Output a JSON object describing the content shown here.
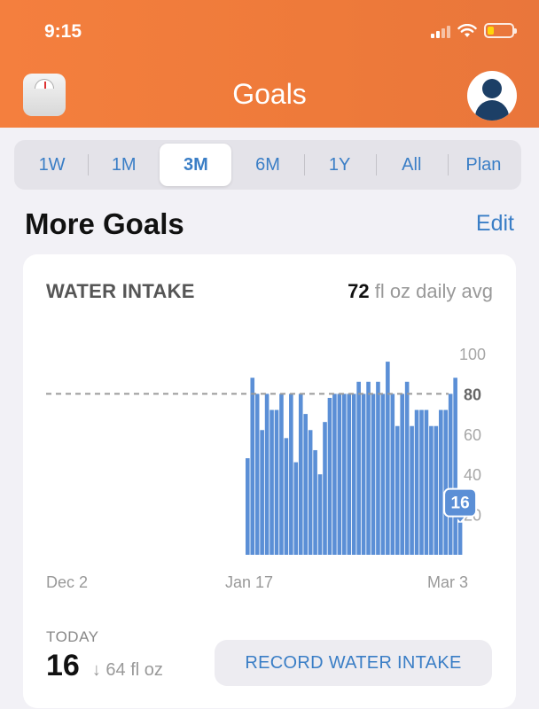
{
  "status_bar": {
    "time": "9:15"
  },
  "header": {
    "title": "Goals"
  },
  "segments": [
    {
      "label": "1W",
      "active": false
    },
    {
      "label": "1M",
      "active": false
    },
    {
      "label": "3M",
      "active": true
    },
    {
      "label": "6M",
      "active": false
    },
    {
      "label": "1Y",
      "active": false
    },
    {
      "label": "All",
      "active": false
    },
    {
      "label": "Plan",
      "active": false
    }
  ],
  "section": {
    "title": "More Goals",
    "edit_label": "Edit"
  },
  "card": {
    "title": "WATER INTAKE",
    "avg_value": "72",
    "avg_suffix": " fl oz daily avg",
    "today_label": "TODAY",
    "today_value": "16",
    "today_change": "↓ 64 fl oz",
    "record_button": "RECORD WATER INTAKE"
  },
  "colors": {
    "accent": "#3a7ec6",
    "bar": "#5b8fd6",
    "header": "#f07c3c"
  },
  "chart_data": {
    "type": "bar",
    "x_tick_labels": [
      "Dec 2",
      "Jan 17",
      "Mar 3"
    ],
    "y_ticks": [
      20,
      40,
      60,
      80,
      100
    ],
    "ylim": [
      0,
      100
    ],
    "goal_line": 80,
    "highlight": {
      "label": "16",
      "value": 16
    },
    "values": [
      48,
      88,
      80,
      62,
      80,
      72,
      72,
      80,
      58,
      80,
      46,
      80,
      70,
      62,
      52,
      40,
      66,
      78,
      80,
      80,
      80,
      80,
      80,
      86,
      80,
      86,
      80,
      86,
      80,
      96,
      80,
      64,
      80,
      86,
      64,
      72,
      72,
      72,
      64,
      64,
      72,
      72,
      80,
      88,
      16
    ]
  }
}
